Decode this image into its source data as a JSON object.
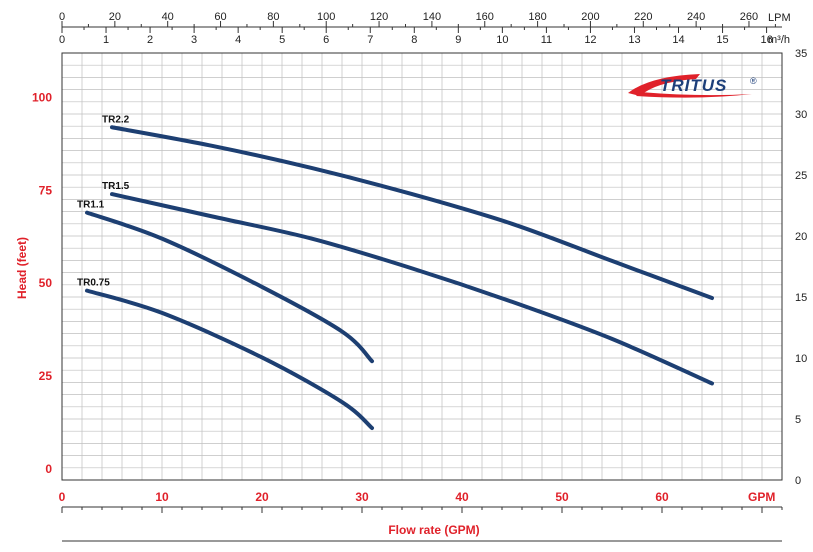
{
  "logo": {
    "text": "TRITUS",
    "mark": "®"
  },
  "chart_data": {
    "type": "line",
    "x_gpm": {
      "range": [
        0,
        72
      ],
      "ticks": [
        0,
        10,
        20,
        30,
        40,
        50,
        60
      ],
      "unit_label": "GPM"
    },
    "x_lpm": {
      "range": [
        0,
        272.5
      ],
      "ticks": [
        0,
        20,
        40,
        60,
        80,
        100,
        120,
        140,
        160,
        180,
        200,
        220,
        240,
        260
      ],
      "unit_label": "LPM"
    },
    "x_m3h": {
      "range": [
        0,
        16.35
      ],
      "ticks": [
        0,
        1,
        2,
        3,
        4,
        5,
        6,
        7,
        8,
        9,
        10,
        11,
        12,
        13,
        14,
        15,
        16
      ],
      "unit_label": "m³/h"
    },
    "y_feet": {
      "range": [
        -3,
        112
      ],
      "ticks": [
        0,
        25,
        50,
        75,
        100
      ]
    },
    "y_meters": {
      "range": [
        0,
        35
      ],
      "ticks": [
        0,
        5,
        10,
        15,
        20,
        25,
        30,
        35
      ]
    },
    "ylabel": "Head (feet)",
    "xlabel": "Flow rate (GPM)",
    "line_color": "#1d3f72",
    "grid": true,
    "series": [
      {
        "name": "TR2.2",
        "x": [
          5,
          15,
          25,
          35,
          45,
          55,
          65
        ],
        "y": [
          92,
          87,
          81,
          74,
          66,
          56,
          46
        ]
      },
      {
        "name": "TR1.5",
        "x": [
          5,
          15,
          25,
          35,
          45,
          55,
          65
        ],
        "y": [
          74,
          68,
          62,
          54,
          45,
          35,
          23
        ]
      },
      {
        "name": "TR1.1",
        "x": [
          2.5,
          10,
          20,
          28,
          31
        ],
        "y": [
          69,
          62,
          49,
          37,
          29
        ]
      },
      {
        "name": "TR0.75",
        "x": [
          2.5,
          10,
          20,
          28,
          31
        ],
        "y": [
          48,
          42,
          30,
          18,
          11
        ]
      }
    ]
  }
}
